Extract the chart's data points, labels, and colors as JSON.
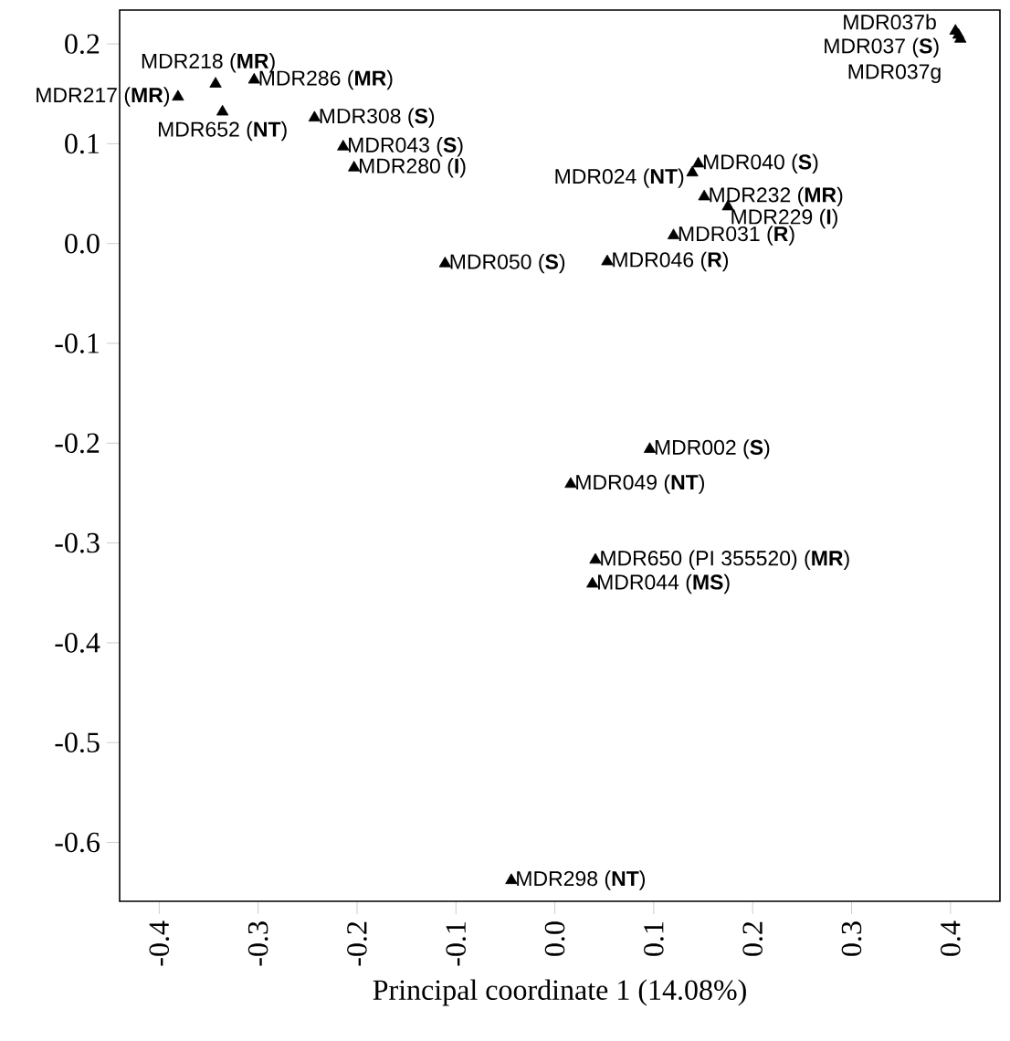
{
  "chart_data": {
    "type": "scatter",
    "xlabel": "Principal coordinate 1 (14.08%)",
    "marker": "triangle",
    "xlim": [
      -0.44,
      0.45
    ],
    "ylim": [
      -0.659,
      0.234
    ],
    "xticks": [
      -0.4,
      -0.3,
      -0.2,
      -0.1,
      {
        "value": 0,
        "label": "0.0"
      },
      0.1,
      0.2,
      0.3,
      0.4
    ],
    "yticks": [
      -0.6,
      -0.5,
      -0.4,
      -0.3,
      -0.2,
      -0.1,
      {
        "value": 0,
        "label": "0.0"
      },
      0.1,
      0.2
    ],
    "series": [
      {
        "name": "MDR217 (**MR**)",
        "color": "#000000",
        "x": [
          -0.381
        ],
        "values": [
          0.147
        ]
      },
      {
        "name": "MDR218 (**MR**)",
        "color": "#000000",
        "x": [
          -0.343
        ],
        "values": [
          0.16
        ]
      },
      {
        "name": "MDR286 (**MR**)",
        "color": "#000000",
        "x": [
          -0.304
        ],
        "values": [
          0.164
        ]
      },
      {
        "name": "MDR652 (**NT**)",
        "color": "#000000",
        "x": [
          -0.336
        ],
        "values": [
          0.132
        ]
      },
      {
        "name": "MDR308 (**S**)",
        "color": "#000000",
        "x": [
          -0.243
        ],
        "values": [
          0.126
        ]
      },
      {
        "name": "MDR043 (**S**)",
        "color": "#000000",
        "x": [
          -0.214
        ],
        "values": [
          0.097
        ]
      },
      {
        "name": "MDR280 (**I**)",
        "color": "#000000",
        "x": [
          -0.203
        ],
        "values": [
          0.076
        ]
      },
      {
        "name": "MDR050 (**S**)",
        "color": "#000000",
        "x": [
          -0.111
        ],
        "values": [
          -0.02
        ]
      },
      {
        "name": "MDR046 (**R**)",
        "color": "#000000",
        "x": [
          0.053
        ],
        "values": [
          -0.018
        ]
      },
      {
        "name": "MDR031 (**R**)",
        "color": "#000000",
        "x": [
          0.12
        ],
        "values": [
          0.008
        ]
      },
      {
        "name": "MDR024 (**NT**)",
        "color": "#000000",
        "x": [
          0.139
        ],
        "values": [
          0.071
        ]
      },
      {
        "name": "MDR040 (**S**)",
        "color": "#000000",
        "x": [
          0.145
        ],
        "values": [
          0.08
        ]
      },
      {
        "name": "MDR232 (**MR**)",
        "color": "#000000",
        "x": [
          0.151
        ],
        "values": [
          0.047
        ]
      },
      {
        "name": "MDR229 (**I**)",
        "color": "#000000",
        "x": [
          0.175
        ],
        "values": [
          0.037
        ]
      },
      {
        "name": "MDR037b",
        "color": "#000000",
        "x": [
          0.405
        ],
        "values": [
          0.213
        ]
      },
      {
        "name": "MDR037 (**S**)",
        "color": "#000000",
        "x": [
          0.408
        ],
        "values": [
          0.209
        ]
      },
      {
        "name": "MDR037g",
        "color": "#000000",
        "x": [
          0.41
        ],
        "values": [
          0.205
        ]
      },
      {
        "name": "MDR002 (**S**)",
        "color": "#000000",
        "x": [
          0.096
        ],
        "values": [
          -0.206
        ]
      },
      {
        "name": "MDR049 (**NT**)",
        "color": "#000000",
        "x": [
          0.016
        ],
        "values": [
          -0.241
        ]
      },
      {
        "name": "MDR650 (PI 355520) (**MR**)",
        "color": "#000000",
        "x": [
          0.041
        ],
        "values": [
          -0.317
        ]
      },
      {
        "name": "MDR044 (**MS**)",
        "color": "#000000",
        "x": [
          0.038
        ],
        "values": [
          -0.341
        ]
      },
      {
        "name": "MDR298 (**NT**)",
        "color": "#000000",
        "x": [
          -0.044
        ],
        "values": [
          -0.638
        ]
      }
    ]
  }
}
